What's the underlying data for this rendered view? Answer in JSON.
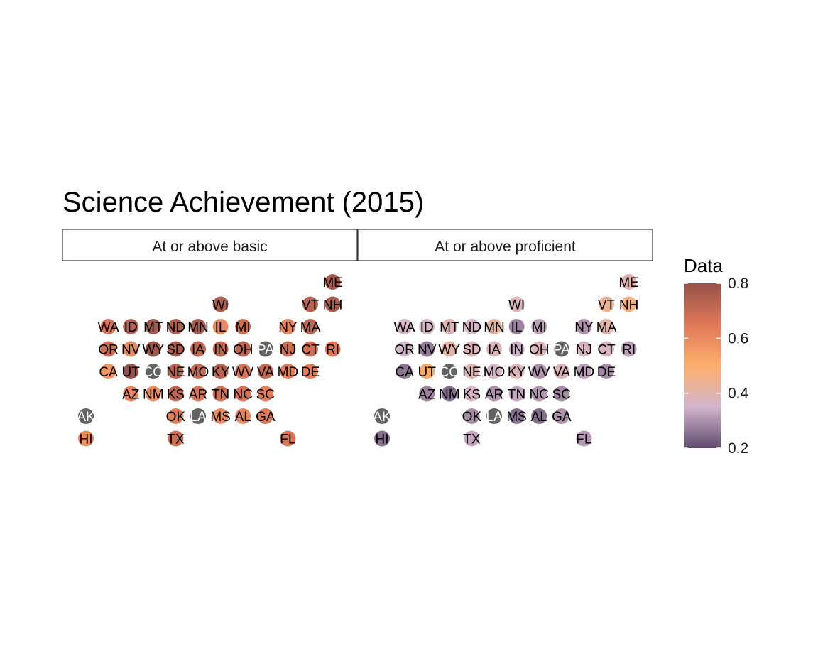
{
  "chart_data": {
    "type": "tile-grid-map",
    "title": "Science Achievement (2015)",
    "facets": [
      "At or above basic",
      "At or above proficient"
    ],
    "legend": {
      "title": "Data",
      "placement": "right",
      "range": [
        0.2,
        0.8
      ],
      "ticks": [
        0.2,
        0.4,
        0.6,
        0.8
      ],
      "colors": [
        "#5e4a6e",
        "#d4b5cc",
        "#fdb06c",
        "#e07858",
        "#95524a"
      ],
      "na_color": "#636363"
    },
    "states": [
      {
        "abbr": "ME",
        "col": 11,
        "row": 0,
        "basic": 0.76,
        "proficient": 0.4
      },
      {
        "abbr": "WI",
        "col": 6,
        "row": 1,
        "basic": 0.75,
        "proficient": 0.38
      },
      {
        "abbr": "VT",
        "col": 10,
        "row": 1,
        "basic": 0.73,
        "proficient": 0.44
      },
      {
        "abbr": "NH",
        "col": 11,
        "row": 1,
        "basic": 0.76,
        "proficient": 0.47
      },
      {
        "abbr": "WA",
        "col": 1,
        "row": 2,
        "basic": 0.67,
        "proficient": 0.36
      },
      {
        "abbr": "ID",
        "col": 2,
        "row": 2,
        "basic": 0.73,
        "proficient": 0.36
      },
      {
        "abbr": "MT",
        "col": 3,
        "row": 2,
        "basic": 0.77,
        "proficient": 0.39
      },
      {
        "abbr": "ND",
        "col": 4,
        "row": 2,
        "basic": 0.75,
        "proficient": 0.36
      },
      {
        "abbr": "MN",
        "col": 5,
        "row": 2,
        "basic": 0.76,
        "proficient": 0.42
      },
      {
        "abbr": "IL",
        "col": 6,
        "row": 2,
        "basic": 0.6,
        "proficient": 0.28
      },
      {
        "abbr": "MI",
        "col": 7,
        "row": 2,
        "basic": 0.69,
        "proficient": 0.32
      },
      {
        "abbr": "NY",
        "col": 9,
        "row": 2,
        "basic": 0.62,
        "proficient": 0.3
      },
      {
        "abbr": "MA",
        "col": 10,
        "row": 2,
        "basic": 0.72,
        "proficient": 0.41
      },
      {
        "abbr": "OR",
        "col": 1,
        "row": 3,
        "basic": 0.69,
        "proficient": 0.35
      },
      {
        "abbr": "NV",
        "col": 2,
        "row": 3,
        "basic": 0.6,
        "proficient": 0.27
      },
      {
        "abbr": "WY",
        "col": 3,
        "row": 3,
        "basic": 0.78,
        "proficient": 0.41
      },
      {
        "abbr": "SD",
        "col": 4,
        "row": 3,
        "basic": 0.76,
        "proficient": 0.38
      },
      {
        "abbr": "IA",
        "col": 5,
        "row": 3,
        "basic": 0.72,
        "proficient": 0.38
      },
      {
        "abbr": "IN",
        "col": 6,
        "row": 3,
        "basic": 0.72,
        "proficient": 0.34
      },
      {
        "abbr": "OH",
        "col": 7,
        "row": 3,
        "basic": 0.73,
        "proficient": 0.38
      },
      {
        "abbr": "PA",
        "col": 8,
        "row": 3,
        "basic": null,
        "proficient": null
      },
      {
        "abbr": "NJ",
        "col": 9,
        "row": 3,
        "basic": 0.69,
        "proficient": 0.37
      },
      {
        "abbr": "CT",
        "col": 10,
        "row": 3,
        "basic": 0.68,
        "proficient": 0.37
      },
      {
        "abbr": "RI",
        "col": 11,
        "row": 3,
        "basic": 0.65,
        "proficient": 0.32
      },
      {
        "abbr": "CA",
        "col": 1,
        "row": 4,
        "basic": 0.57,
        "proficient": 0.26
      },
      {
        "abbr": "UT",
        "col": 2,
        "row": 4,
        "basic": 0.8,
        "proficient": 0.52
      },
      {
        "abbr": "CO",
        "col": 3,
        "row": 4,
        "basic": null,
        "proficient": null
      },
      {
        "abbr": "NE",
        "col": 4,
        "row": 4,
        "basic": 0.73,
        "proficient": 0.39
      },
      {
        "abbr": "MO",
        "col": 5,
        "row": 4,
        "basic": 0.71,
        "proficient": 0.36
      },
      {
        "abbr": "KY",
        "col": 6,
        "row": 4,
        "basic": 0.73,
        "proficient": 0.38
      },
      {
        "abbr": "WV",
        "col": 7,
        "row": 4,
        "basic": 0.66,
        "proficient": 0.3
      },
      {
        "abbr": "VA",
        "col": 8,
        "row": 4,
        "basic": 0.71,
        "proficient": 0.38
      },
      {
        "abbr": "MD",
        "col": 9,
        "row": 4,
        "basic": 0.64,
        "proficient": 0.32
      },
      {
        "abbr": "DE",
        "col": 10,
        "row": 4,
        "basic": 0.64,
        "proficient": 0.29
      },
      {
        "abbr": "AZ",
        "col": 2,
        "row": 5,
        "basic": 0.62,
        "proficient": 0.28
      },
      {
        "abbr": "NM",
        "col": 3,
        "row": 5,
        "basic": 0.59,
        "proficient": 0.25
      },
      {
        "abbr": "KS",
        "col": 4,
        "row": 5,
        "basic": 0.72,
        "proficient": 0.36
      },
      {
        "abbr": "AR",
        "col": 5,
        "row": 5,
        "basic": 0.66,
        "proficient": 0.3
      },
      {
        "abbr": "TN",
        "col": 6,
        "row": 5,
        "basic": 0.69,
        "proficient": 0.33
      },
      {
        "abbr": "NC",
        "col": 7,
        "row": 5,
        "basic": 0.67,
        "proficient": 0.31
      },
      {
        "abbr": "SC",
        "col": 8,
        "row": 5,
        "basic": 0.64,
        "proficient": 0.29
      },
      {
        "abbr": "AK",
        "col": 0,
        "row": 6,
        "basic": null,
        "proficient": null
      },
      {
        "abbr": "OK",
        "col": 4,
        "row": 6,
        "basic": 0.64,
        "proficient": 0.29
      },
      {
        "abbr": "LA",
        "col": 5,
        "row": 6,
        "basic": null,
        "proficient": null
      },
      {
        "abbr": "MS",
        "col": 6,
        "row": 6,
        "basic": 0.6,
        "proficient": 0.25
      },
      {
        "abbr": "AL",
        "col": 7,
        "row": 6,
        "basic": 0.61,
        "proficient": 0.25
      },
      {
        "abbr": "GA",
        "col": 8,
        "row": 6,
        "basic": 0.65,
        "proficient": 0.3
      },
      {
        "abbr": "HI",
        "col": 0,
        "row": 7,
        "basic": 0.6,
        "proficient": 0.25
      },
      {
        "abbr": "TX",
        "col": 4,
        "row": 7,
        "basic": 0.69,
        "proficient": 0.33
      },
      {
        "abbr": "FL",
        "col": 9,
        "row": 7,
        "basic": 0.66,
        "proficient": 0.31
      }
    ]
  }
}
